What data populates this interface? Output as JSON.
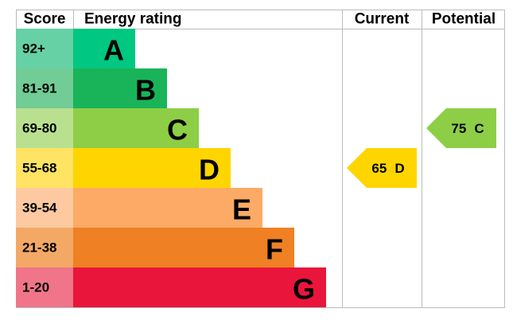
{
  "headers": {
    "score": "Score",
    "rating": "Energy rating",
    "current": "Current",
    "potential": "Potential"
  },
  "bands": [
    {
      "score": "92+",
      "letter": "A",
      "color": "#00c781",
      "score_color": "#66d1a4"
    },
    {
      "score": "81-91",
      "letter": "B",
      "color": "#19b459",
      "score_color": "#72cc95"
    },
    {
      "score": "69-80",
      "letter": "C",
      "color": "#8dce46",
      "score_color": "#b9e08f"
    },
    {
      "score": "55-68",
      "letter": "D",
      "color": "#ffd500",
      "score_color": "#ffe363"
    },
    {
      "score": "39-54",
      "letter": "E",
      "color": "#fcaa65",
      "score_color": "#fdc9a0"
    },
    {
      "score": "21-38",
      "letter": "F",
      "color": "#ef8023",
      "score_color": "#f4a866"
    },
    {
      "score": "1-20",
      "letter": "G",
      "color": "#e9153b",
      "score_color": "#f17588"
    }
  ],
  "current": {
    "value": 65,
    "rating": "D",
    "color": "#ffd500"
  },
  "potential": {
    "value": 75,
    "rating": "C",
    "color": "#8dce46"
  }
}
